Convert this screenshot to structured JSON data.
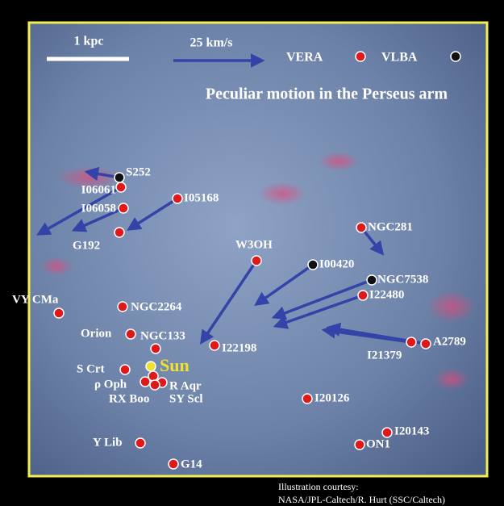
{
  "header": {
    "scale_bar_label": "1 kpc",
    "velocity_label": "25 km/s",
    "legend": {
      "vera": "VERA",
      "vlba": "VLBA"
    },
    "title": "Peculiar motion in the Perseus arm"
  },
  "sources": [
    {
      "label": "S252"
    },
    {
      "label": "I06061"
    },
    {
      "label": "I06058"
    },
    {
      "label": "G192"
    },
    {
      "label": "I05168"
    },
    {
      "label": "NGC281"
    },
    {
      "label": "W3OH"
    },
    {
      "label": "I00420"
    },
    {
      "label": "NGC7538"
    },
    {
      "label": "I22480"
    },
    {
      "label": "VY CMa"
    },
    {
      "label": "NGC2264"
    },
    {
      "label": "Orion"
    },
    {
      "label": "NGC133"
    },
    {
      "label": "I22198"
    },
    {
      "label": "I21379"
    },
    {
      "label": "A2789"
    },
    {
      "label": "Sun"
    },
    {
      "label": "S Crt"
    },
    {
      "label": "ρ Oph"
    },
    {
      "label": "R Aqr"
    },
    {
      "label": "RX Boo"
    },
    {
      "label": "SY Scl"
    },
    {
      "label": "I20126"
    },
    {
      "label": "I20143"
    },
    {
      "label": "ON1"
    },
    {
      "label": "Y Lib"
    },
    {
      "label": "G14"
    }
  ],
  "credit": [
    "Illustration courtesy:",
    "NASA/JPL-Caltech/R. Hurt (SSC/Caltech)"
  ]
}
